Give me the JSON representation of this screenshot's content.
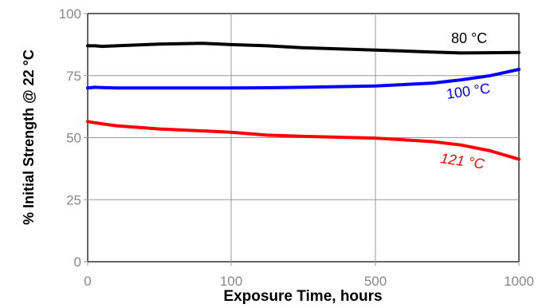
{
  "chart_data": {
    "type": "line",
    "xlabel": "Exposure Time, hours",
    "ylabel": "% Initial Strength @ 22 °C",
    "x_ticks": [
      0,
      100,
      500,
      1000
    ],
    "x_tick_labels": [
      "0",
      "100",
      "500",
      "1000"
    ],
    "y_ticks": [
      0,
      25,
      50,
      75,
      100
    ],
    "y_tick_labels": [
      "0",
      "25",
      "50",
      "75",
      "100"
    ],
    "ylim": [
      0,
      100
    ],
    "grid": true,
    "series": [
      {
        "name": "80 °C",
        "color": "#000000",
        "x": [
          0,
          5,
          10,
          20,
          50,
          80,
          100,
          200,
          300,
          500,
          700,
          800,
          1000
        ],
        "y": [
          87,
          87,
          86.8,
          87,
          87.7,
          88,
          87.5,
          87,
          86.2,
          85.3,
          84.5,
          84.1,
          84.3
        ]
      },
      {
        "name": "100 °C",
        "color": "#0000ff",
        "x": [
          0,
          5,
          10,
          20,
          50,
          100,
          200,
          300,
          500,
          700,
          800,
          900,
          1000
        ],
        "y": [
          70,
          70.3,
          70.2,
          70,
          70,
          70,
          70.1,
          70.3,
          70.8,
          72,
          73.3,
          75,
          77.5
        ]
      },
      {
        "name": "121 °C",
        "color": "#ff0000",
        "x": [
          0,
          5,
          10,
          20,
          50,
          100,
          200,
          300,
          500,
          700,
          800,
          900,
          1000
        ],
        "y": [
          56.5,
          56,
          55.6,
          54.8,
          53.5,
          52.2,
          51,
          50.5,
          49.8,
          48.4,
          47,
          44.7,
          41.3
        ]
      }
    ]
  }
}
